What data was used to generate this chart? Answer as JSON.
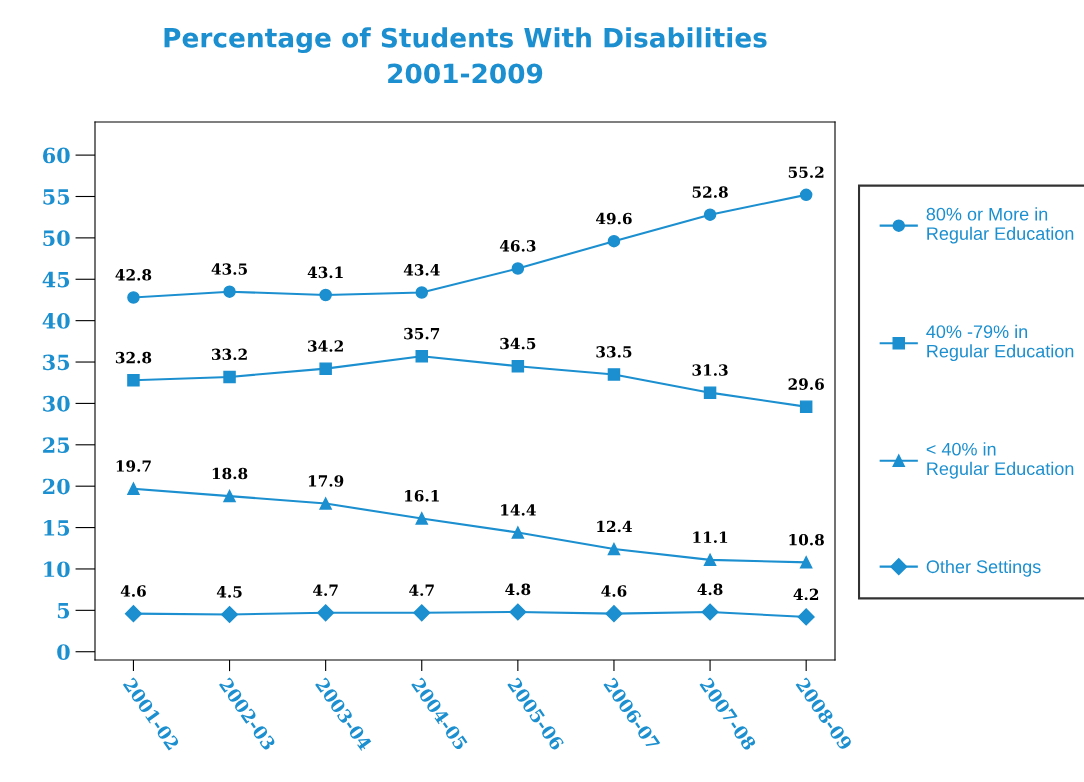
{
  "chart_data": {
    "type": "line",
    "title": "Percentage of Students With Disabilities\n2001-2009",
    "categories": [
      "2001-02",
      "2002-03",
      "2003-04",
      "2004-05",
      "2005-06",
      "2006-07",
      "2007-08",
      "2008-09"
    ],
    "series": [
      {
        "name": "80% or More in\nRegular Education",
        "color": "#1b8fcf",
        "marker": "circle",
        "values": [
          42.8,
          43.5,
          43.1,
          43.4,
          46.3,
          49.6,
          52.8,
          55.2
        ]
      },
      {
        "name": "40% -79% in\nRegular Education",
        "color": "#1b8fcf",
        "marker": "square",
        "values": [
          32.8,
          33.2,
          34.2,
          35.7,
          34.5,
          33.5,
          31.3,
          29.6
        ]
      },
      {
        "name": "< 40% in\nRegular Education",
        "color": "#1b8fcf",
        "marker": "triangle",
        "values": [
          19.7,
          18.8,
          17.9,
          16.1,
          14.4,
          12.4,
          11.1,
          10.8
        ]
      },
      {
        "name": "Other Settings",
        "color": "#1b8fcf",
        "marker": "diamond",
        "values": [
          4.6,
          4.5,
          4.7,
          4.7,
          4.8,
          4.6,
          4.8,
          4.2
        ]
      }
    ],
    "ylim": [
      -1,
      64
    ],
    "yticks": [
      0,
      5,
      10,
      15,
      20,
      25,
      30,
      35,
      40,
      45,
      50,
      55,
      60
    ],
    "data_labels": true,
    "grid": false,
    "legend": "right",
    "line_style": "solid"
  }
}
